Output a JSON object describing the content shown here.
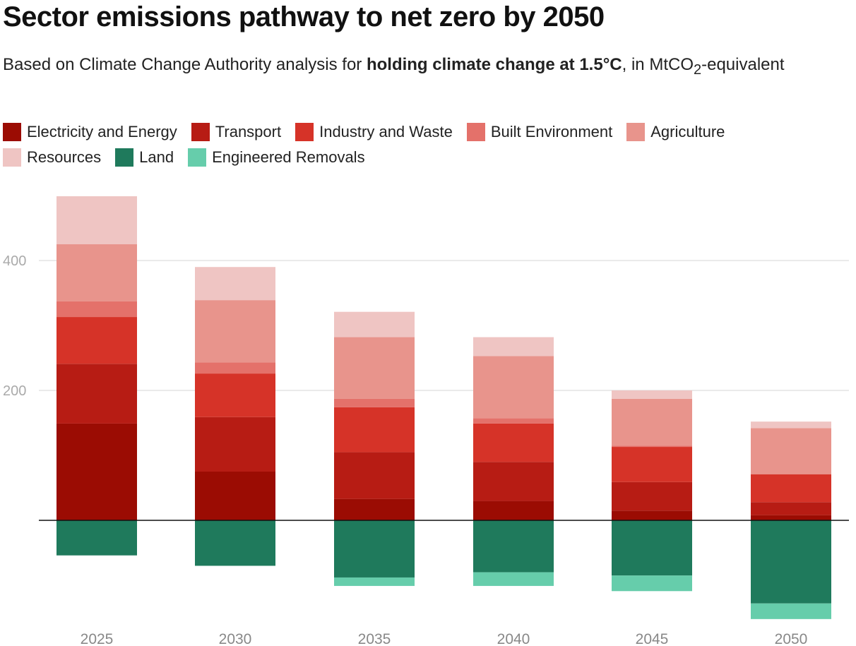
{
  "title": "Sector emissions pathway to net zero by 2050",
  "subtitle": {
    "prefix": "Based on Climate Change Authority analysis for ",
    "bold": "holding climate change at 1.5°C",
    "suffix": ", in MtCO",
    "sub": "2",
    "end": "-equivalent"
  },
  "chart_data": {
    "type": "bar",
    "stacked": true,
    "title": "Sector emissions pathway to net zero by 2050",
    "xlabel": "",
    "ylabel": "",
    "categories": [
      "2025",
      "2030",
      "2035",
      "2040",
      "2045",
      "2050"
    ],
    "y_ticks": [
      "200",
      "400"
    ],
    "ylim": [
      -150,
      500
    ],
    "grid": true,
    "legend_placement": "top",
    "series": [
      {
        "name": "Electricity and Energy",
        "color": "#9b0c03",
        "values": [
          149,
          75,
          33,
          30,
          15,
          8
        ]
      },
      {
        "name": "Transport",
        "color": "#b71c14",
        "values": [
          92,
          84,
          72,
          60,
          44,
          20
        ]
      },
      {
        "name": "Industry and Waste",
        "color": "#d63328",
        "values": [
          72,
          67,
          69,
          59,
          54,
          43
        ]
      },
      {
        "name": "Built Environment",
        "color": "#e4716a",
        "values": [
          24,
          17,
          13,
          8,
          2,
          0
        ]
      },
      {
        "name": "Agriculture",
        "color": "#e8948c",
        "values": [
          88,
          96,
          95,
          96,
          72,
          71
        ]
      },
      {
        "name": "Resources",
        "color": "#efc5c3",
        "values": [
          74,
          51,
          39,
          29,
          13,
          10
        ]
      },
      {
        "name": "Land",
        "color": "#1f7a5c",
        "values": [
          -54,
          -70,
          -88,
          -80,
          -85,
          -128
        ]
      },
      {
        "name": "Engineered Removals",
        "color": "#66cdab",
        "values": [
          0,
          0,
          -13,
          -21,
          -24,
          -24
        ]
      }
    ]
  }
}
